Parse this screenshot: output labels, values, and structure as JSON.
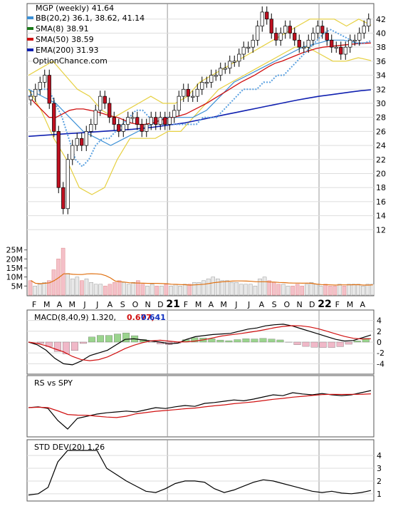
{
  "chart_data": [
    {
      "type": "candlestick",
      "title": "MGP (weekly) 41.64",
      "watermark": "OptionChance.com",
      "ylim": [
        10,
        43.5
      ],
      "yticks": [
        12,
        14,
        16,
        18,
        20,
        22,
        24,
        26,
        28,
        30,
        32,
        34,
        36,
        38,
        40,
        42
      ],
      "x_labels": [
        "F",
        "M",
        "A",
        "M",
        "J",
        "J",
        "A",
        "S",
        "O",
        "N",
        "D",
        "21",
        "F",
        "M",
        "A",
        "M",
        "J",
        "J",
        "A",
        "S",
        "O",
        "N",
        "D",
        "22",
        "F",
        "M",
        "A"
      ],
      "legend": [
        {
          "label": "BB(20,2) 36.1, 38.62, 41.14",
          "color": "#3a8fd6"
        },
        {
          "label": "SMA(8) 38.91",
          "color": "#1a7a1a"
        },
        {
          "label": "SMA(50) 38.59",
          "color": "#d01010"
        },
        {
          "label": "EMA(200) 31.93",
          "color": "#1020b0"
        }
      ],
      "series": {
        "close": [
          31,
          32,
          33,
          34,
          30,
          26,
          18,
          15,
          22,
          24,
          25,
          24,
          26,
          27,
          29,
          31,
          30,
          28,
          27,
          26,
          27,
          28,
          28,
          27,
          26,
          27,
          28,
          27,
          28,
          27,
          28,
          29,
          31,
          32,
          31,
          31,
          32,
          33,
          33,
          34,
          34,
          35,
          35,
          36,
          36,
          37,
          38,
          38,
          39,
          41,
          43,
          42,
          40,
          39,
          40,
          41,
          40,
          39,
          38,
          38,
          39,
          40,
          41,
          40,
          39,
          38,
          38,
          37,
          38,
          39,
          39,
          40,
          41,
          42
        ],
        "sma50": [
          31,
          30,
          29,
          28,
          28,
          28.5,
          29,
          29.2,
          29.2,
          29,
          28.8,
          28.5,
          28.2,
          28,
          27.6,
          27.2,
          27,
          27,
          27.2,
          27.5,
          27.8,
          28,
          28.2,
          28.5,
          29,
          29.5,
          30,
          30.6,
          31.2,
          31.8,
          32.4,
          33,
          33.5,
          34,
          34.6,
          35.2,
          35.7,
          36,
          36.4,
          36.8,
          37.2,
          37.5,
          37.8,
          38,
          38.1,
          38.2,
          38.3,
          38.4,
          38.5,
          38.55,
          38.59
        ],
        "sma8": [
          31,
          31.5,
          32,
          32,
          30,
          28,
          25,
          22,
          21,
          22,
          24,
          25,
          25,
          26,
          27,
          28,
          29,
          29,
          28,
          27,
          27,
          27,
          27,
          27,
          27,
          27,
          28,
          28,
          28,
          29,
          30,
          31,
          32,
          32,
          32,
          33,
          33,
          34,
          34,
          35,
          36,
          37,
          38,
          39,
          40,
          40.5,
          40,
          39.5,
          39,
          38.5,
          38.6,
          38.9
        ],
        "ema200": [
          25.3,
          25.4,
          25.5,
          25.6,
          25.7,
          25.8,
          25.9,
          26,
          26.1,
          26.2,
          26.3,
          26.45,
          26.6,
          26.8,
          27,
          27.2,
          27.5,
          27.8,
          28.1,
          28.4,
          28.7,
          29,
          29.3,
          29.6,
          29.9,
          30.2,
          30.5,
          30.75,
          31,
          31.2,
          31.4,
          31.6,
          31.8,
          31.93
        ],
        "bb_upper": [
          34,
          35,
          36,
          34,
          32,
          31,
          29,
          28,
          29,
          30,
          31,
          30,
          30,
          31,
          33,
          34,
          35,
          36,
          37,
          38,
          39,
          40,
          41,
          42,
          42,
          42,
          41,
          42,
          41.14
        ],
        "bb_lower": [
          32,
          29,
          25,
          22,
          18,
          17,
          18,
          22,
          25,
          25,
          25,
          26,
          26,
          28,
          30,
          32,
          33,
          34,
          35,
          36,
          37,
          38,
          38,
          37,
          36,
          36,
          36.5,
          36.1
        ],
        "bb_mid": [
          32,
          31,
          30,
          28,
          26,
          25,
          24,
          25,
          26,
          27,
          28,
          28,
          28,
          29,
          31,
          33,
          34,
          35,
          36,
          37,
          38,
          38.5,
          39,
          39,
          38.6,
          38.62
        ]
      }
    },
    {
      "type": "bar",
      "title": "Volume",
      "yticks": [
        "5M",
        "10M",
        "15M",
        "20M",
        "25M"
      ],
      "ylim": [
        0,
        30
      ],
      "values": [
        8,
        5,
        6,
        7,
        8,
        14,
        20,
        26,
        12,
        9,
        10,
        8,
        9,
        7,
        6,
        6,
        5,
        6,
        7,
        8,
        7,
        6,
        7,
        8,
        6,
        5,
        6,
        5,
        5,
        6,
        5,
        6,
        5,
        6,
        6,
        7,
        7,
        8,
        9,
        10,
        9,
        8,
        8,
        7,
        7,
        6,
        6,
        6,
        5,
        9,
        10,
        8,
        7,
        6,
        6,
        5,
        5,
        6,
        5,
        6,
        7,
        6,
        5,
        6,
        5,
        5,
        6,
        5,
        6,
        6,
        6,
        5,
        6,
        6
      ]
    },
    {
      "type": "line",
      "title": "MACD(8,40,9) 1.320,",
      "values_label": [
        "0.677,",
        "0.641"
      ],
      "value_colors": [
        "#d01010",
        "#1030c0"
      ],
      "yticks": [
        4,
        2,
        0,
        -2,
        -4
      ],
      "ylim": [
        -5,
        5
      ]
    },
    {
      "type": "line",
      "title": "RS vs SPY"
    },
    {
      "type": "line",
      "title": "STD DEV(20) 1.26",
      "yticks": [
        4,
        3,
        2,
        1
      ],
      "ylim": [
        0.6,
        4.4
      ]
    }
  ]
}
